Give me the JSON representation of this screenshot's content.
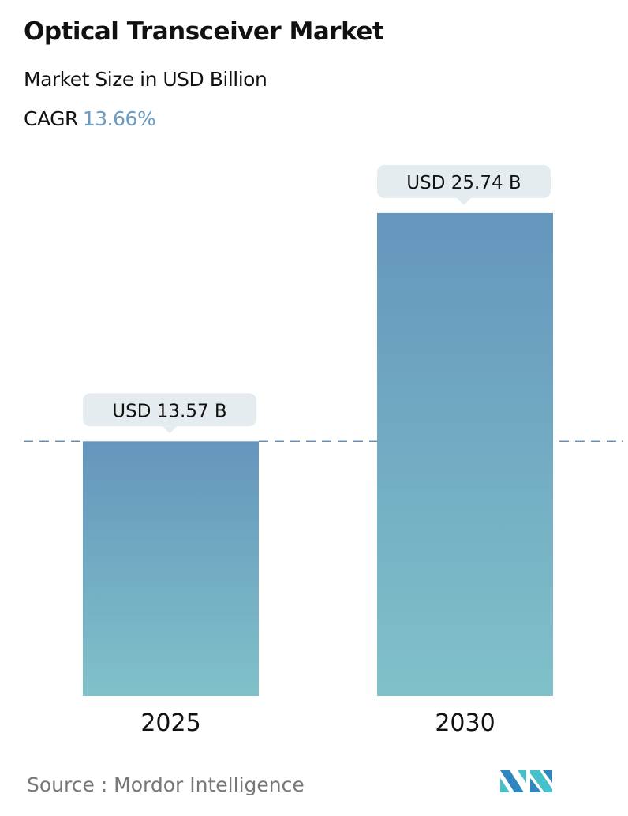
{
  "title": "Optical Transceiver Market",
  "subtitle": "Market Size in USD Billion",
  "cagr_label": "CAGR",
  "cagr_value": "13.66%",
  "source": "Source :  Mordor Intelligence",
  "logo_text": "Mordor Intelligence",
  "colors": {
    "bar_top": "#6596bd",
    "bar_bottom": "#80c1c9",
    "label_bg": "#e5ecef",
    "cagr": "#6a9bc3",
    "dashed_line": "#6a8fb0"
  },
  "chart_data": {
    "type": "bar",
    "categories": [
      "2025",
      "2030"
    ],
    "values": [
      13.57,
      25.74
    ],
    "data_labels": [
      "USD 13.57 B",
      "USD 25.74 B"
    ],
    "title": "Optical Transceiver Market",
    "xlabel": "",
    "ylabel": "",
    "ylim": [
      0,
      27
    ],
    "grid": false,
    "reference_line": {
      "value": 13.57,
      "style": "dashed"
    }
  }
}
